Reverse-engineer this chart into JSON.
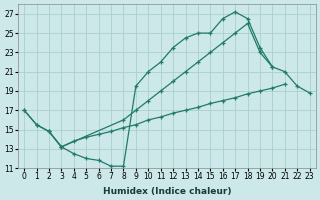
{
  "xlabel": "Humidex (Indice chaleur)",
  "background_color": "#cce8e8",
  "grid_color": "#aacfcf",
  "line_color": "#217a6a",
  "xlim": [
    -0.5,
    23.5
  ],
  "ylim": [
    11,
    28
  ],
  "xticks": [
    0,
    1,
    2,
    3,
    4,
    5,
    6,
    7,
    8,
    9,
    10,
    11,
    12,
    13,
    14,
    15,
    16,
    17,
    18,
    19,
    20,
    21,
    22,
    23
  ],
  "yticks": [
    11,
    13,
    15,
    17,
    19,
    21,
    23,
    25,
    27
  ],
  "lines": [
    {
      "x": [
        0,
        1,
        2,
        3,
        4,
        5,
        6,
        7,
        8,
        9,
        10,
        11,
        12,
        13,
        14,
        15,
        16,
        17,
        18,
        19,
        20
      ],
      "y": [
        17,
        15.5,
        14.8,
        13.2,
        12.5,
        12.0,
        11.8,
        11.2,
        11.2,
        19.5,
        21.0,
        22.0,
        23.5,
        24.5,
        25.0,
        25.0,
        26.5,
        27.2,
        26.5,
        23.5,
        21.5
      ]
    },
    {
      "x": [
        0,
        1,
        2,
        3,
        4,
        5,
        6,
        7,
        8,
        9,
        10,
        11,
        12,
        13,
        14,
        15,
        16,
        17,
        18,
        19,
        20,
        21,
        22,
        23
      ],
      "y": [
        17.0,
        15.5,
        14.8,
        13.2,
        13.8,
        14.2,
        14.5,
        14.8,
        15.2,
        15.5,
        16.0,
        16.3,
        16.7,
        17.0,
        17.3,
        17.7,
        18.0,
        18.3,
        18.7,
        19.0,
        19.3,
        19.7,
        null,
        null
      ]
    },
    {
      "x": [
        2,
        3,
        8,
        9,
        10,
        11,
        12,
        13,
        14,
        15,
        16,
        17,
        18,
        19,
        20,
        21,
        22,
        23
      ],
      "y": [
        14.8,
        13.2,
        16.0,
        17.0,
        18.0,
        19.0,
        20.0,
        21.0,
        22.0,
        23.0,
        24.0,
        25.0,
        26.0,
        23.0,
        21.5,
        21.0,
        19.5,
        18.8
      ]
    }
  ]
}
